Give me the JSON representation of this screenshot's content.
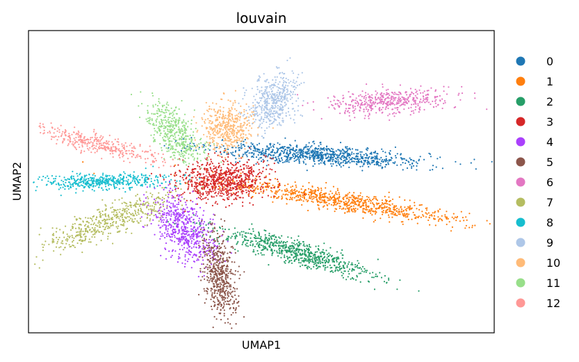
{
  "chart_data": {
    "type": "scatter",
    "title": "louvain",
    "xlabel": "UMAP1",
    "ylabel": "UMAP2",
    "xlim": [
      -10,
      10
    ],
    "ylim": [
      -8,
      9
    ],
    "grid": false,
    "legend_position": "right",
    "series": [
      {
        "name": "0",
        "color": "#1f77b4",
        "center": [
          2.5,
          2.0
        ],
        "spread": [
          4.6,
          0.55
        ],
        "tilt": -0.08,
        "count": 900
      },
      {
        "name": "1",
        "color": "#ff7f0e",
        "center": [
          3.5,
          -0.6
        ],
        "spread": [
          5.5,
          0.55
        ],
        "tilt": -0.22,
        "count": 850
      },
      {
        "name": "2",
        "color": "#279e68",
        "center": [
          1.5,
          -3.5
        ],
        "spread": [
          3.6,
          0.65
        ],
        "tilt": -0.38,
        "count": 700
      },
      {
        "name": "3",
        "color": "#d62728",
        "center": [
          -1.7,
          0.6
        ],
        "spread": [
          1.9,
          1.2
        ],
        "tilt": 0.0,
        "count": 750
      },
      {
        "name": "4",
        "color": "#aa40fc",
        "center": [
          -3.3,
          -2.1
        ],
        "spread": [
          1.1,
          2.0
        ],
        "tilt": 0.5,
        "count": 600
      },
      {
        "name": "5",
        "color": "#8c564b",
        "center": [
          -1.8,
          -4.8
        ],
        "spread": [
          0.7,
          2.3
        ],
        "tilt": 0.1,
        "count": 550
      },
      {
        "name": "6",
        "color": "#e377c2",
        "center": [
          5.5,
          5.0
        ],
        "spread": [
          2.6,
          0.7
        ],
        "tilt": 0.12,
        "count": 450
      },
      {
        "name": "7",
        "color": "#b5bd61",
        "center": [
          -6.5,
          -1.7
        ],
        "spread": [
          3.0,
          0.8
        ],
        "tilt": 0.52,
        "count": 500
      },
      {
        "name": "8",
        "color": "#17becf",
        "center": [
          -6.8,
          0.5
        ],
        "spread": [
          2.9,
          0.45
        ],
        "tilt": 0.03,
        "count": 450
      },
      {
        "name": "9",
        "color": "#aec7e8",
        "center": [
          0.5,
          5.0
        ],
        "spread": [
          1.0,
          1.6
        ],
        "tilt": -0.4,
        "count": 450
      },
      {
        "name": "10",
        "color": "#ffbb78",
        "center": [
          -1.5,
          3.5
        ],
        "spread": [
          1.1,
          1.3
        ],
        "tilt": 0.0,
        "count": 450
      },
      {
        "name": "11",
        "color": "#98df8a",
        "center": [
          -3.8,
          3.3
        ],
        "spread": [
          0.9,
          1.8
        ],
        "tilt": 0.55,
        "count": 450
      },
      {
        "name": "12",
        "color": "#ff9896",
        "center": [
          -7.0,
          2.6
        ],
        "spread": [
          2.7,
          0.5
        ],
        "tilt": -0.32,
        "count": 350
      }
    ]
  }
}
